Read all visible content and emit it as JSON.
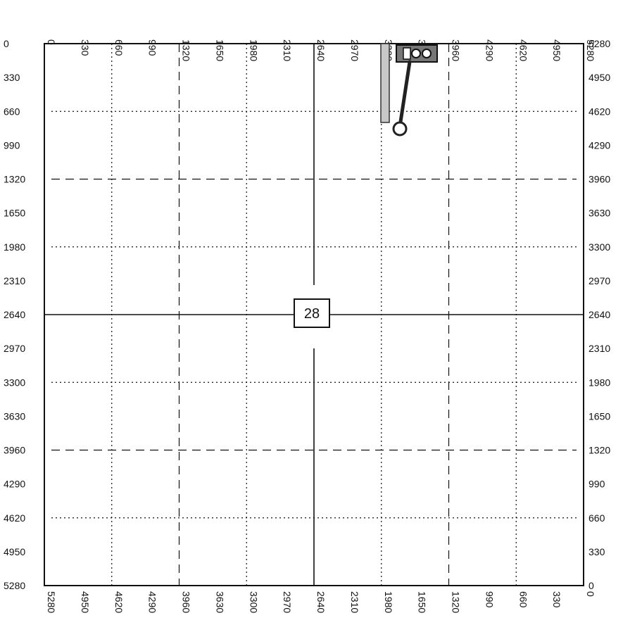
{
  "map": {
    "section_number": "28",
    "left_ticks": [
      "0",
      "330",
      "660",
      "990",
      "1320",
      "1650",
      "1980",
      "2310",
      "2640",
      "2970",
      "3300",
      "3630",
      "3960",
      "4290",
      "4620",
      "4950",
      "5280"
    ],
    "right_ticks": [
      "5280",
      "4950",
      "4620",
      "4290",
      "3960",
      "3630",
      "3300",
      "2970",
      "2640",
      "2310",
      "1980",
      "1650",
      "1320",
      "990",
      "660",
      "330",
      "0"
    ],
    "top_ticks": [
      "0",
      "330",
      "660",
      "990",
      "1320",
      "1650",
      "1980",
      "2310",
      "2640",
      "2970",
      "3300",
      "3630",
      "3960",
      "4290",
      "4620",
      "4950",
      "5280"
    ],
    "bottom_ticks": [
      "5280",
      "4950",
      "4620",
      "4290",
      "3960",
      "3630",
      "3300",
      "2970",
      "2640",
      "2310",
      "1980",
      "1650",
      "1320",
      "990",
      "660",
      "330",
      "0"
    ]
  }
}
